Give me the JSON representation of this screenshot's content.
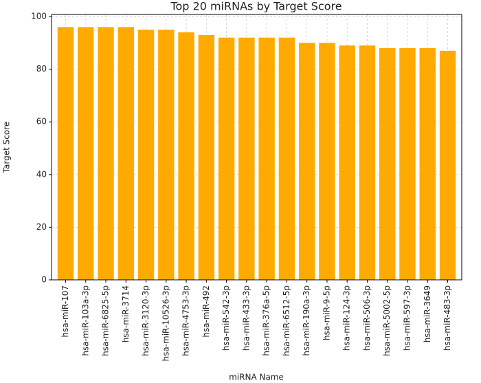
{
  "chart_data": {
    "type": "bar",
    "title": "Top 20 miRNAs by Target Score",
    "x_label": "miRNA Name",
    "y_label": "Target Score",
    "categories": [
      "hsa-miR-107",
      "hsa-miR-103a-3p",
      "hsa-miR-6825-5p",
      "hsa-miR-3714",
      "hsa-miR-3120-3p",
      "hsa-miR-10526-3p",
      "hsa-miR-4753-3p",
      "hsa-miR-492",
      "hsa-miR-542-3p",
      "hsa-miR-433-3p",
      "hsa-miR-376a-5p",
      "hsa-miR-6512-5p",
      "hsa-miR-190a-3p",
      "hsa-miR-9-5p",
      "hsa-miR-124-3p",
      "hsa-miR-506-3p",
      "hsa-miR-5002-5p",
      "hsa-miR-597-3p",
      "hsa-miR-3649",
      "hsa-miR-483-3p"
    ],
    "values": [
      96,
      96,
      96,
      96,
      95,
      95,
      94,
      93,
      92,
      92,
      92,
      92,
      90,
      90,
      89,
      89,
      88,
      88,
      88,
      87
    ],
    "color": "#ffaa00",
    "ylim": [
      0,
      100.8
    ],
    "yticks": [
      0,
      20,
      40,
      60,
      80,
      100
    ],
    "grid": true
  }
}
